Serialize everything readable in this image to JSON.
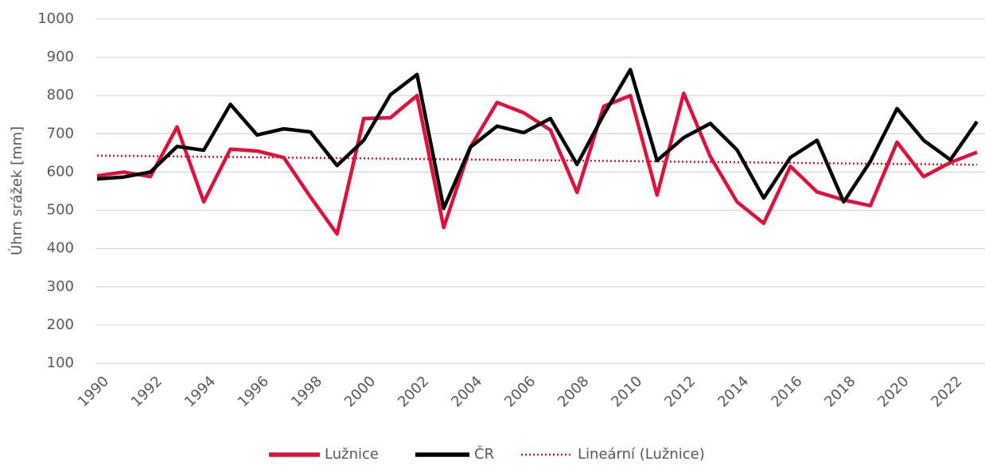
{
  "chart_data": {
    "type": "line",
    "y_label": "Úhrn srážek [mm]",
    "x": [
      1990,
      1991,
      1992,
      1993,
      1994,
      1995,
      1996,
      1997,
      1998,
      1999,
      2000,
      2001,
      2002,
      2003,
      2004,
      2005,
      2006,
      2007,
      2008,
      2009,
      2010,
      2011,
      2012,
      2013,
      2014,
      2015,
      2016,
      2017,
      2018,
      2019,
      2020,
      2021,
      2022,
      2023
    ],
    "series": [
      {
        "name": "Lužnice",
        "color": "#e0103a",
        "values": [
          590,
          600,
          588,
          718,
          522,
          660,
          655,
          638,
          535,
          438,
          740,
          742,
          800,
          455,
          665,
          782,
          755,
          710,
          547,
          772,
          800,
          540,
          806,
          640,
          522,
          466,
          615,
          548,
          527,
          512,
          678,
          588,
          625,
          652
        ]
      },
      {
        "name": "ČR",
        "color": "#000000",
        "values": [
          582,
          587,
          600,
          667,
          657,
          777,
          697,
          713,
          705,
          617,
          683,
          802,
          855,
          505,
          665,
          720,
          703,
          740,
          620,
          750,
          868,
          630,
          690,
          727,
          658,
          532,
          638,
          683,
          522,
          628,
          766,
          683,
          632,
          732
        ]
      }
    ],
    "trend": {
      "name": "Lineární (Lužnice)",
      "color": "#e0103a",
      "x": [
        1990,
        2023
      ],
      "values": [
        643,
        619
      ]
    },
    "xlim": [
      1990,
      2023
    ],
    "xticks": [
      1990,
      1992,
      1994,
      1996,
      1998,
      2000,
      2002,
      2004,
      2006,
      2008,
      2010,
      2012,
      2014,
      2016,
      2018,
      2020,
      2022
    ],
    "ylim": [
      100,
      1000
    ],
    "yticks": [
      100,
      200,
      300,
      400,
      500,
      600,
      700,
      800,
      900,
      1000
    ],
    "grid": true,
    "legend": "bottom"
  }
}
